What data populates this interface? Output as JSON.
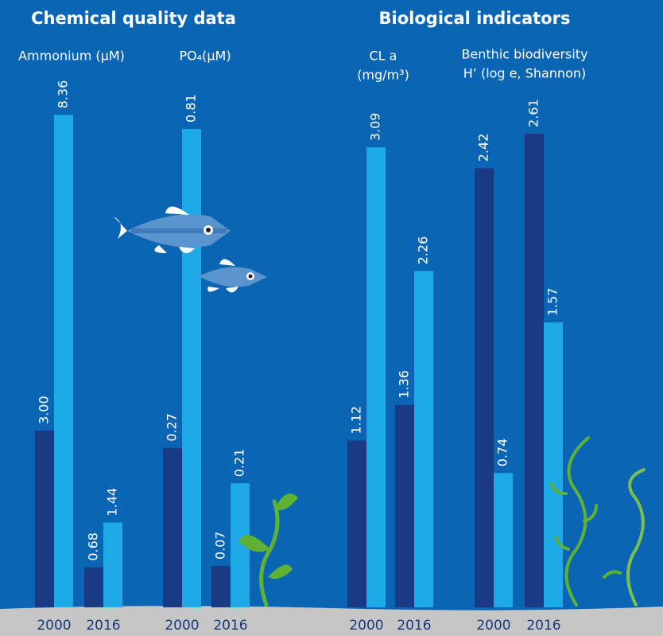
{
  "headers": [
    "Chemical quality data",
    "Biological indicators"
  ],
  "chart_data": [
    {
      "type": "bar",
      "title": [
        "Ammonium (µM)"
      ],
      "categories": [
        "2000",
        "2016"
      ],
      "series": [
        {
          "color": "#1b3a84",
          "values": [
            3.0,
            0.68
          ],
          "value_labels": [
            "3.00",
            "0.68"
          ]
        },
        {
          "color": "#1ea9e8",
          "values": [
            8.36,
            1.44
          ]
        }
      ]
    },
    {
      "type": "bar",
      "title": [
        "PO₄(µM)"
      ],
      "categories": [
        "2000",
        "2016"
      ],
      "series": [
        {
          "color": "#1b3a84",
          "values": [
            0.27,
            0.07
          ]
        },
        {
          "color": "#1ea9e8",
          "values": [
            0.81,
            0.21
          ]
        }
      ]
    },
    {
      "type": "bar",
      "title": [
        "CL a",
        "(mg/m³)"
      ],
      "categories": [
        "2000",
        "2016"
      ],
      "series": [
        {
          "color": "#1b3a84",
          "values": [
            1.12,
            1.36
          ]
        },
        {
          "color": "#1ea9e8",
          "values": [
            3.09,
            2.26
          ]
        }
      ]
    },
    {
      "type": "bar",
      "title": [
        "Benthic biodiversity",
        "H’ (log e, Shannon)"
      ],
      "categories": [
        "2000",
        "2016"
      ],
      "series": [
        {
          "color": "#1b3a84",
          "values": [
            2.42,
            2.61
          ]
        },
        {
          "color": "#1ea9e8",
          "values": [
            0.74,
            1.57
          ]
        }
      ]
    }
  ]
}
